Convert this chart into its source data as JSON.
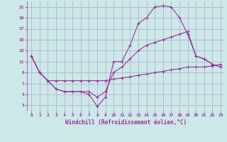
{
  "xlabel": "Windchill (Refroidissement éolien,°C)",
  "background_color": "#cce8e8",
  "grid_color": "#aaaacc",
  "line_color": "#993399",
  "xlim": [
    -0.5,
    23.5
  ],
  "ylim": [
    2,
    22
  ],
  "xticks": [
    0,
    1,
    2,
    3,
    4,
    5,
    6,
    7,
    8,
    9,
    10,
    11,
    12,
    13,
    14,
    15,
    16,
    17,
    18,
    19,
    20,
    21,
    22,
    23
  ],
  "yticks": [
    3,
    5,
    7,
    9,
    11,
    13,
    15,
    17,
    19,
    21
  ],
  "line1_x": [
    0,
    1,
    2,
    3,
    4,
    5,
    6,
    7,
    8,
    9,
    10,
    11,
    12,
    13,
    14,
    15,
    16,
    17,
    18,
    19,
    20,
    21,
    22,
    23
  ],
  "line1_y": [
    12,
    9,
    7.5,
    6,
    5.5,
    5.5,
    5.5,
    5,
    2.8,
    4.5,
    11,
    11,
    14,
    18,
    19,
    21,
    21.2,
    21,
    19,
    16,
    12,
    11.5,
    10.5,
    10
  ],
  "line2_x": [
    0,
    1,
    2,
    3,
    4,
    5,
    6,
    7,
    8,
    9,
    10,
    11,
    12,
    13,
    14,
    15,
    16,
    17,
    18,
    19,
    20,
    21,
    22,
    23
  ],
  "line2_y": [
    12,
    9,
    7.5,
    7.5,
    7.5,
    7.5,
    7.5,
    7.5,
    7.5,
    7.5,
    7.8,
    8,
    8.2,
    8.5,
    8.7,
    9,
    9.2,
    9.5,
    9.7,
    10,
    10,
    10,
    10.2,
    10.5
  ],
  "line3_x": [
    0,
    1,
    2,
    3,
    4,
    5,
    6,
    7,
    8,
    9,
    10,
    11,
    12,
    13,
    14,
    15,
    16,
    17,
    18,
    19,
    20,
    21,
    22,
    23
  ],
  "line3_y": [
    12,
    9,
    7.5,
    6,
    5.5,
    5.5,
    5.5,
    5.5,
    4.5,
    5.5,
    9,
    10,
    11.5,
    13,
    14,
    14.5,
    15,
    15.5,
    16,
    16.5,
    12,
    11.5,
    10.5,
    10
  ]
}
